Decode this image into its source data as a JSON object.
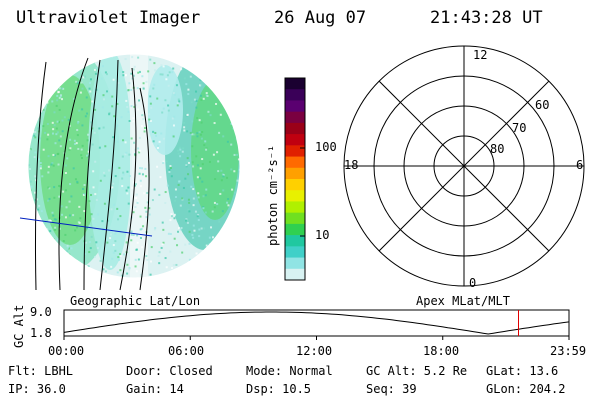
{
  "header": {
    "instrument": "Ultraviolet Imager",
    "date": "26 Aug 07",
    "time": "21:43:28 UT"
  },
  "colorbar": {
    "label": "photon cm⁻²s⁻¹",
    "ticks": [
      {
        "label": "100",
        "value": 100
      },
      {
        "label": "10",
        "value": 10
      }
    ],
    "colors": [
      "#1a0030",
      "#3a0058",
      "#5a0070",
      "#7a0040",
      "#9a0018",
      "#c00010",
      "#e02000",
      "#ff6a00",
      "#ffa000",
      "#ffd000",
      "#e8f000",
      "#b0f000",
      "#70e020",
      "#30d050",
      "#20c8a0",
      "#40d0c8",
      "#90e4e4",
      "#d8f2f2"
    ]
  },
  "map_labels": {
    "left": "Geographic Lat/Lon",
    "right": "Apex MLat/MLT"
  },
  "polar_plot": {
    "mlt_labels": [
      "12",
      "6",
      "0",
      "18"
    ],
    "mlat_labels": [
      "60",
      "70",
      "80"
    ]
  },
  "orbit_plot": {
    "ylabel": "GC Alt",
    "y_ticks": [
      "9.0",
      "1.8"
    ],
    "x_ticks": [
      "00:00",
      "06:00",
      "12:00",
      "18:00",
      "23:59"
    ],
    "current_time_fraction": 0.9
  },
  "info": {
    "filter": "Flt: LBHL",
    "ip": "IP: 36.0",
    "door": "Door: Closed",
    "gain": "Gain: 14",
    "mode": "Mode: Normal",
    "dsp": "Dsp:   10.5",
    "gc_alt": "GC Alt: 5.2 Re",
    "seq": "Seq: 39",
    "glat": "GLat:  13.6",
    "glon": "GLon: 204.2"
  }
}
